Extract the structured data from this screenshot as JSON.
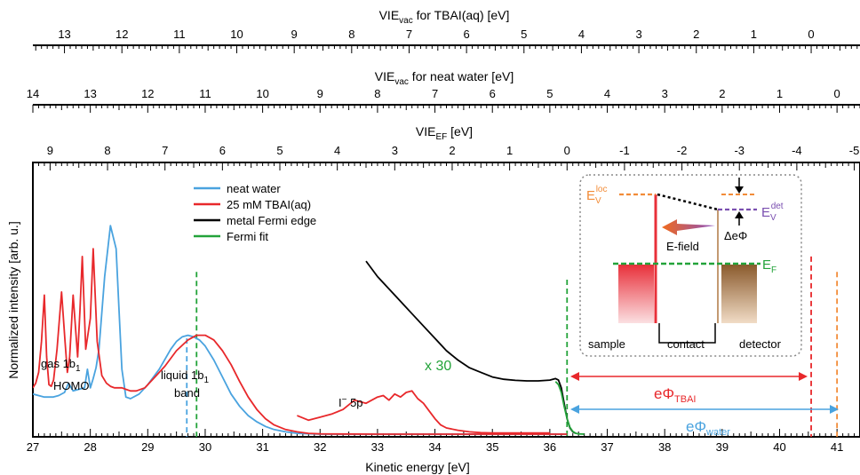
{
  "chart_data": {
    "type": "line",
    "x_axis": {
      "label_main": "Kinetic energy",
      "label_unit": " [eV]",
      "range": [
        27,
        41.4
      ],
      "ticks": [
        27,
        28,
        29,
        30,
        31,
        32,
        33,
        34,
        35,
        36,
        37,
        38,
        39,
        40,
        41
      ]
    },
    "top_axes": [
      {
        "id": "tbai",
        "label_pre": "VIE",
        "label_sub": "vac",
        "label_post": " for TBAI(aq) [eV]",
        "ticks": [
          "13",
          "12",
          "11",
          "10",
          "9",
          "8",
          "7",
          "6",
          "5",
          "4",
          "3",
          "2",
          "1",
          "0"
        ],
        "ticks_ke": [
          27.55,
          28.55,
          29.55,
          30.55,
          31.55,
          32.55,
          33.55,
          34.55,
          35.55,
          36.55,
          37.55,
          38.55,
          39.55,
          40.55
        ]
      },
      {
        "id": "water",
        "label_pre": "VIE",
        "label_sub": "vac",
        "label_post": " for neat water [eV]",
        "ticks": [
          "14",
          "13",
          "12",
          "11",
          "10",
          "9",
          "8",
          "7",
          "6",
          "5",
          "4",
          "3",
          "2",
          "1",
          "0"
        ],
        "ticks_ke": [
          27.0,
          28.0,
          29.0,
          30.0,
          31.0,
          32.0,
          33.0,
          34.0,
          35.0,
          36.0,
          37.0,
          38.0,
          39.0,
          40.0,
          41.0
        ]
      },
      {
        "id": "ef",
        "label_pre": "VIE",
        "label_sub": "EF",
        "label_post": " [eV]",
        "ticks": [
          "9",
          "8",
          "7",
          "6",
          "5",
          "4",
          "3",
          "2",
          "1",
          "0",
          "-1",
          "-2",
          "-3",
          "-4",
          "-5"
        ],
        "ticks_ke": [
          27.3,
          28.3,
          29.3,
          30.3,
          31.3,
          32.3,
          33.3,
          34.3,
          35.3,
          36.3,
          37.3,
          38.3,
          39.3,
          40.3,
          41.3
        ]
      }
    ],
    "y_axis": {
      "label": "Normalized intensity [arb. u.]",
      "range": [
        0,
        1
      ]
    },
    "legend": {
      "placement": "top-center",
      "entries": [
        {
          "name": "neat water",
          "color": "#4aa3df"
        },
        {
          "name": "25 mM TBAI(aq)",
          "color": "#e8282b"
        },
        {
          "name": "metal Fermi edge",
          "color": "#000000"
        },
        {
          "name": "Fermi fit",
          "color": "#23a33a"
        }
      ]
    },
    "series": [
      {
        "name": "neat water",
        "color": "#4aa3df",
        "x": [
          27.0,
          27.2,
          27.35,
          27.45,
          27.55,
          27.62,
          27.7,
          27.8,
          27.9,
          27.95,
          28.0,
          28.05,
          28.1,
          28.15,
          28.25,
          28.35,
          28.45,
          28.5,
          28.55,
          28.62,
          28.7,
          28.85,
          29.0,
          29.2,
          29.4,
          29.5,
          29.6,
          29.7,
          29.8,
          29.9,
          30.0,
          30.15,
          30.3,
          30.45,
          30.6,
          30.75,
          30.9,
          31.05,
          31.2,
          31.4,
          31.6,
          32.0,
          33.0,
          34.0,
          35.0,
          36.0,
          36.3
        ],
        "y": [
          0.26,
          0.24,
          0.24,
          0.25,
          0.27,
          0.33,
          0.28,
          0.29,
          0.3,
          0.42,
          0.3,
          0.36,
          0.43,
          0.55,
          1.02,
          1.35,
          1.2,
          0.8,
          0.42,
          0.24,
          0.23,
          0.26,
          0.32,
          0.42,
          0.55,
          0.6,
          0.63,
          0.64,
          0.63,
          0.61,
          0.57,
          0.48,
          0.37,
          0.26,
          0.18,
          0.12,
          0.08,
          0.05,
          0.03,
          0.015,
          0.005,
          0.0,
          0.0,
          0.0,
          0.0,
          0.0,
          0.0
        ]
      },
      {
        "name": "25 mM TBAI(aq)",
        "color": "#e8282b",
        "x": [
          27.0,
          27.05,
          27.1,
          27.15,
          27.2,
          27.24,
          27.28,
          27.32,
          27.36,
          27.42,
          27.5,
          27.56,
          27.6,
          27.64,
          27.7,
          27.78,
          27.82,
          27.86,
          27.92,
          28.0,
          28.05,
          28.12,
          28.2,
          28.28,
          28.35,
          28.42,
          28.5,
          28.55,
          28.62,
          28.7,
          28.8,
          28.95,
          29.1,
          29.3,
          29.5,
          29.7,
          29.85,
          30.0,
          30.15,
          30.3,
          30.45,
          30.6,
          30.75,
          30.9,
          31.05,
          31.2,
          31.4,
          31.6,
          31.8,
          32.0,
          33.0,
          34.0,
          35.0,
          36.0,
          36.3
        ],
        "y": [
          0.3,
          0.33,
          0.4,
          0.6,
          0.9,
          0.5,
          0.32,
          0.31,
          0.35,
          0.55,
          0.92,
          0.6,
          0.4,
          0.5,
          0.9,
          0.5,
          0.8,
          1.15,
          0.55,
          0.75,
          1.2,
          0.6,
          0.38,
          0.33,
          0.31,
          0.3,
          0.3,
          0.3,
          0.29,
          0.28,
          0.28,
          0.3,
          0.36,
          0.44,
          0.54,
          0.61,
          0.64,
          0.64,
          0.61,
          0.54,
          0.45,
          0.34,
          0.24,
          0.16,
          0.1,
          0.06,
          0.03,
          0.015,
          0.005,
          0.002,
          0.0,
          0.0,
          0.0,
          0.0,
          0.0
        ]
      },
      {
        "name": "x 30 (I⁻ 5p)",
        "color": "#e8282b",
        "x": [
          31.6,
          31.8,
          32.0,
          32.2,
          32.4,
          32.6,
          32.8,
          33.0,
          33.1,
          33.2,
          33.3,
          33.4,
          33.5,
          33.6,
          33.7,
          33.8,
          33.9,
          34.0,
          34.1,
          34.2,
          34.4,
          34.6,
          34.8,
          35.0,
          35.5,
          36.0
        ],
        "y": [
          0.12,
          0.09,
          0.11,
          0.13,
          0.16,
          0.22,
          0.2,
          0.24,
          0.25,
          0.22,
          0.26,
          0.24,
          0.27,
          0.28,
          0.23,
          0.2,
          0.15,
          0.1,
          0.06,
          0.04,
          0.025,
          0.015,
          0.01,
          0.008,
          0.008,
          0.008
        ]
      },
      {
        "name": "metal Fermi edge",
        "color": "#000000",
        "x": [
          32.8,
          33.0,
          33.2,
          33.4,
          33.6,
          33.8,
          34.0,
          34.2,
          34.4,
          34.6,
          34.8,
          35.0,
          35.2,
          35.4,
          35.6,
          35.8,
          36.0,
          36.1,
          36.15,
          36.2,
          36.25,
          36.3,
          36.35,
          36.4,
          36.45
        ],
        "y": [
          1.12,
          1.02,
          0.94,
          0.86,
          0.78,
          0.7,
          0.62,
          0.54,
          0.48,
          0.43,
          0.4,
          0.37,
          0.355,
          0.348,
          0.345,
          0.345,
          0.35,
          0.36,
          0.35,
          0.3,
          0.2,
          0.1,
          0.04,
          0.015,
          0.005
        ]
      },
      {
        "name": "Fermi fit",
        "color": "#23a33a",
        "x": [
          36.1,
          36.15,
          36.2,
          36.25,
          36.3,
          36.35,
          36.4,
          36.45,
          36.5,
          36.6
        ],
        "y": [
          0.34,
          0.32,
          0.27,
          0.18,
          0.1,
          0.045,
          0.018,
          0.006,
          0.002,
          0.0
        ]
      }
    ],
    "vlines": [
      {
        "ke": 29.68,
        "color": "#4aa3df",
        "y_top": 0.62
      },
      {
        "ke": 29.85,
        "color": "#23a33a",
        "y_top": 1.05
      },
      {
        "ke": 36.3,
        "color": "#23a33a",
        "y_top": 1.0
      },
      {
        "ke": 40.55,
        "color": "#e8282b",
        "y_top": 1.15
      },
      {
        "ke": 41.0,
        "color": "#f28c38",
        "y_top": 1.05
      }
    ],
    "annotations": {
      "gas_line1": "gas 1b",
      "gas_sub": "1",
      "gas_line2": "HOMO",
      "liquid_line1": "liquid 1b",
      "liquid_sub": "1",
      "liquid_line2": "band",
      "iodide_pre": "I",
      "iodide_sup": "−",
      "iodide_post": " 5p",
      "scale": "x 30",
      "ephi_tbai_pre": "eΦ",
      "ephi_tbai_sub": "TBAI",
      "ephi_water_pre": "eΦ",
      "ephi_water_sub": "water"
    },
    "inset": {
      "ev_loc_pre": "E",
      "ev_loc_sub": "V",
      "ev_loc_sup": "loc",
      "ev_det_pre": "E",
      "ev_det_sub": "V",
      "ev_det_sup": "det",
      "delta": "ΔeΦ",
      "efield": "E-field",
      "ef_pre": "E",
      "ef_sub": "F",
      "sample": "sample",
      "contact": "contact",
      "detector": "detector"
    },
    "colors": {
      "water": "#4aa3df",
      "tbai": "#e8282b",
      "metal": "#000000",
      "fit": "#23a33a",
      "orange": "#f28c38",
      "purple": "#7a4fb0",
      "brown": "#9b6a3c"
    }
  }
}
